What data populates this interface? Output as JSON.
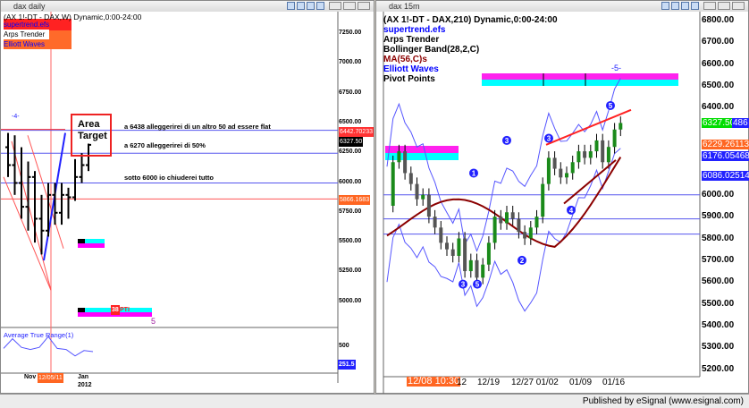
{
  "left": {
    "window_title": "dax daily",
    "symbol_line": "(AX 1!-DT - DAX,W) Dynamic,0:00-24:00",
    "studies": [
      {
        "label": "supertrend.efs",
        "color": "#0000ff"
      },
      {
        "label": "Arps Trender",
        "color": "#000000"
      },
      {
        "label": "Elliott Waves",
        "color": "#0000ff"
      }
    ],
    "price_ticks": [
      "7250.00",
      "7000.00",
      "6750.00",
      "6500.00",
      "6250.00",
      "6000.00",
      "5750.00",
      "5500.00",
      "5250.00",
      "5000.00"
    ],
    "price_tags": [
      {
        "value": "6442.70233",
        "bg": "#ff3333"
      },
      {
        "value": "6327.50",
        "bg": "#000000"
      },
      {
        "value": "5866.1683",
        "bg": "#ff6622"
      }
    ],
    "area_target": "Area\nTarget",
    "area_target_lines": [
      "Area",
      "Target"
    ],
    "notes": [
      "a 6438  alleggerirei di un altro 50 ad essere flat",
      "a 6270  alleggerirei di 50%",
      "sotto 6000 io chiuderei tutto"
    ],
    "wave_label": "-4-",
    "pti_label": "PTI",
    "pti_value": "38",
    "wave5": "5",
    "atr_label": "Average True Range(1)",
    "atr_tick": "500",
    "atr_value": "251.5",
    "time_labels": [
      "Nov",
      "12/05/11",
      "Jan",
      "2012"
    ],
    "chart_data": {
      "type": "ohlc",
      "bars": [
        [
          6300,
          6420,
          6050,
          6150
        ],
        [
          6150,
          6400,
          5900,
          6000
        ],
        [
          6000,
          6300,
          5700,
          5800
        ],
        [
          5800,
          6180,
          5600,
          6050
        ],
        [
          6050,
          6100,
          5500,
          5700
        ],
        [
          5700,
          5900,
          5400,
          5600
        ],
        [
          5600,
          6000,
          5550,
          5900
        ],
        [
          5900,
          6000,
          5650,
          5750
        ],
        [
          5750,
          6000,
          5650,
          5900
        ],
        [
          5900,
          5960,
          5700,
          5880
        ],
        [
          5880,
          6200,
          5850,
          6050
        ],
        [
          6050,
          6250,
          6000,
          6150
        ],
        [
          6150,
          6330,
          6100,
          6320
        ]
      ],
      "atr": [
        430,
        520,
        440,
        420,
        440,
        540,
        430,
        420,
        360,
        410,
        400
      ]
    }
  },
  "right": {
    "window_title": "dax 15m",
    "symbol_line": "(AX 1!-DT - DAX,210) Dynamic,0:00-24:00",
    "studies": [
      {
        "label": "supertrend.efs",
        "color": "#0000ff"
      },
      {
        "label": "Arps Trender",
        "color": "#000000"
      },
      {
        "label": "Bollinger Band(28,2,C)",
        "color": "#000000"
      },
      {
        "label": "MA(56,C)s",
        "color": "#8b0000"
      },
      {
        "label": "Elliott Waves",
        "color": "#0000ff"
      },
      {
        "label": "Pivot Points",
        "color": "#000000"
      }
    ],
    "price_ticks": [
      "6800.00",
      "6700.00",
      "6600.00",
      "6500.00",
      "6400.00",
      "6000.00",
      "5900.00",
      "5800.00",
      "5700.00",
      "5600.00",
      "5500.00",
      "5400.00",
      "5300.00",
      "5200.00"
    ],
    "price_tags": [
      {
        "value": "6327.50",
        "bg": "#00dd00"
      },
      {
        "value": "486",
        "bg": "#2222ff"
      },
      {
        "value": "6229.26113",
        "bg": "#ff6622"
      },
      {
        "value": "6176.05468",
        "bg": "#2222ff"
      },
      {
        "value": "6086.02514",
        "bg": "#2222ff"
      }
    ],
    "wave_label": "-5-",
    "time_labels": [
      "12/08 10:30",
      "12",
      "12/19",
      "12/27 01/02",
      "01/09",
      "01/16"
    ],
    "chart_data": {
      "type": "line",
      "closes": [
        5950,
        6150,
        6200,
        6100,
        6050,
        5980,
        6000,
        5900,
        5850,
        5780,
        5750,
        5720,
        5800,
        5650,
        5700,
        5620,
        5680,
        5780,
        5900,
        5870,
        5920,
        5890,
        5830,
        5800,
        5850,
        5900,
        6050,
        6170,
        6120,
        6080,
        6100,
        6150,
        6200,
        6170,
        6200,
        6250,
        6150,
        6220,
        6300,
        6330
      ]
    }
  },
  "status": "Published by eSignal (www.esignal.com)"
}
